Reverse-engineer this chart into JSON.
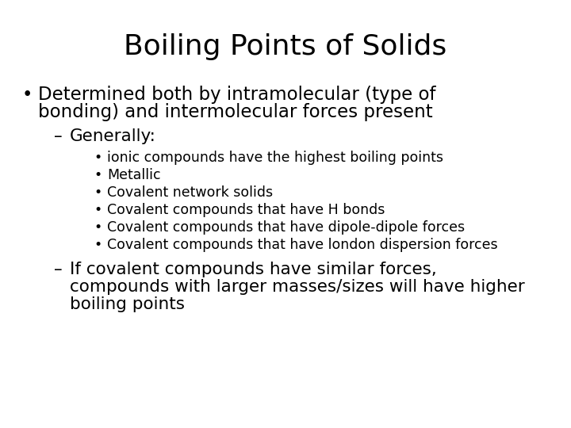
{
  "title": "Boiling Points of Solids",
  "title_fontsize": 26,
  "background_color": "#ffffff",
  "text_color": "#000000",
  "bullet1_line1": "Determined both by intramolecular (type of",
  "bullet1_line2": "bonding) and intermolecular forces present",
  "bullet1_fontsize": 16.5,
  "dash1": "Generally:",
  "dash1_fontsize": 15.5,
  "sub_bullets": [
    "ionic compounds have the highest boiling points",
    "Metallic",
    "Covalent network solids",
    "Covalent compounds that have H bonds",
    "Covalent compounds that have dipole-dipole forces",
    "Covalent compounds that have london dispersion forces"
  ],
  "sub_bullet_fontsize": 12.5,
  "dash2_line1": "If covalent compounds have similar forces,",
  "dash2_line2": "compounds with larger masses/sizes will have higher",
  "dash2_line3": "boiling points",
  "dash2_fontsize": 15.5
}
